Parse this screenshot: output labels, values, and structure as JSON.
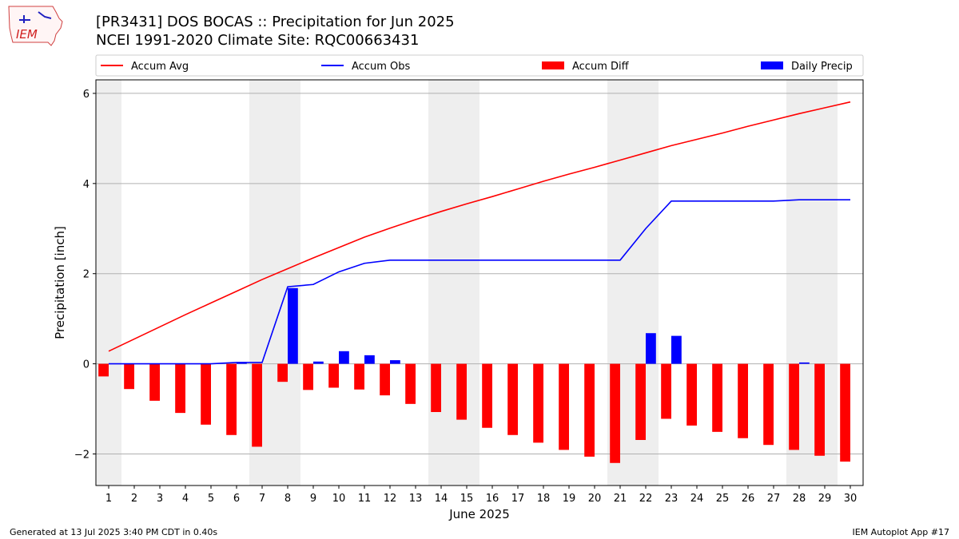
{
  "header": {
    "title_line1": "[PR3431] DOS BOCAS :: Precipitation for Jun 2025",
    "title_line2": "NCEI 1991-2020 Climate Site: RQC00663431",
    "logo_text": "IEM"
  },
  "footer": {
    "generated": "Generated at 13 Jul 2025 3:40 PM CDT in 0.40s",
    "app": "IEM Autoplot App #17"
  },
  "colors": {
    "accum_avg": "#ff0000",
    "accum_obs": "#0000ff",
    "accum_diff": "#ff0000",
    "daily_precip": "#0000ff",
    "weekend_shade": "#eeeeee",
    "grid": "#b0b0b0"
  },
  "chart_data": {
    "type": "bar",
    "xlabel": "June 2025",
    "ylabel": "Precipitation [inch]",
    "ylim": [
      -2.7,
      6.3
    ],
    "yticks": [
      -2,
      0,
      2,
      4,
      6
    ],
    "grid": "horizontal",
    "legend_position": "top",
    "days": [
      1,
      2,
      3,
      4,
      5,
      6,
      7,
      8,
      9,
      10,
      11,
      12,
      13,
      14,
      15,
      16,
      17,
      18,
      19,
      20,
      21,
      22,
      23,
      24,
      25,
      26,
      27,
      28,
      29,
      30
    ],
    "weekend_shaded_days": [
      [
        1
      ],
      [
        7,
        8
      ],
      [
        14,
        15
      ],
      [
        21,
        22
      ],
      [
        28,
        29
      ]
    ],
    "series": [
      {
        "name": "Accum Avg",
        "kind": "line",
        "values": [
          0.28,
          0.55,
          0.82,
          1.09,
          1.35,
          1.61,
          1.87,
          2.11,
          2.35,
          2.58,
          2.81,
          3.01,
          3.2,
          3.38,
          3.55,
          3.71,
          3.88,
          4.05,
          4.21,
          4.36,
          4.52,
          4.68,
          4.84,
          4.98,
          5.12,
          5.27,
          5.41,
          5.55,
          5.68,
          5.81
        ]
      },
      {
        "name": "Accum Obs",
        "kind": "line",
        "values": [
          0.0,
          0.0,
          0.0,
          0.0,
          0.0,
          0.03,
          0.03,
          1.71,
          1.76,
          2.04,
          2.23,
          2.3,
          2.3,
          2.3,
          2.3,
          2.3,
          2.3,
          2.3,
          2.3,
          2.3,
          2.3,
          3.0,
          3.61,
          3.61,
          3.61,
          3.61,
          3.61,
          3.64,
          3.64,
          3.64
        ]
      },
      {
        "name": "Accum Diff",
        "kind": "bar",
        "values": [
          -0.28,
          -0.56,
          -0.82,
          -1.09,
          -1.35,
          -1.58,
          -1.84,
          -0.4,
          -0.58,
          -0.53,
          -0.57,
          -0.7,
          -0.89,
          -1.07,
          -1.24,
          -1.42,
          -1.58,
          -1.75,
          -1.91,
          -2.06,
          -2.2,
          -1.69,
          -1.22,
          -1.37,
          -1.51,
          -1.65,
          -1.8,
          -1.91,
          -2.04,
          -2.17
        ]
      },
      {
        "name": "Daily Precip",
        "kind": "bar",
        "values": [
          0,
          0,
          0,
          0,
          0,
          0.03,
          0,
          1.68,
          0.05,
          0.28,
          0.19,
          0.08,
          0,
          0,
          0,
          0,
          0,
          0,
          0,
          0,
          0,
          0.68,
          0.62,
          0,
          0,
          0,
          0,
          0.03,
          0,
          0
        ]
      }
    ]
  }
}
